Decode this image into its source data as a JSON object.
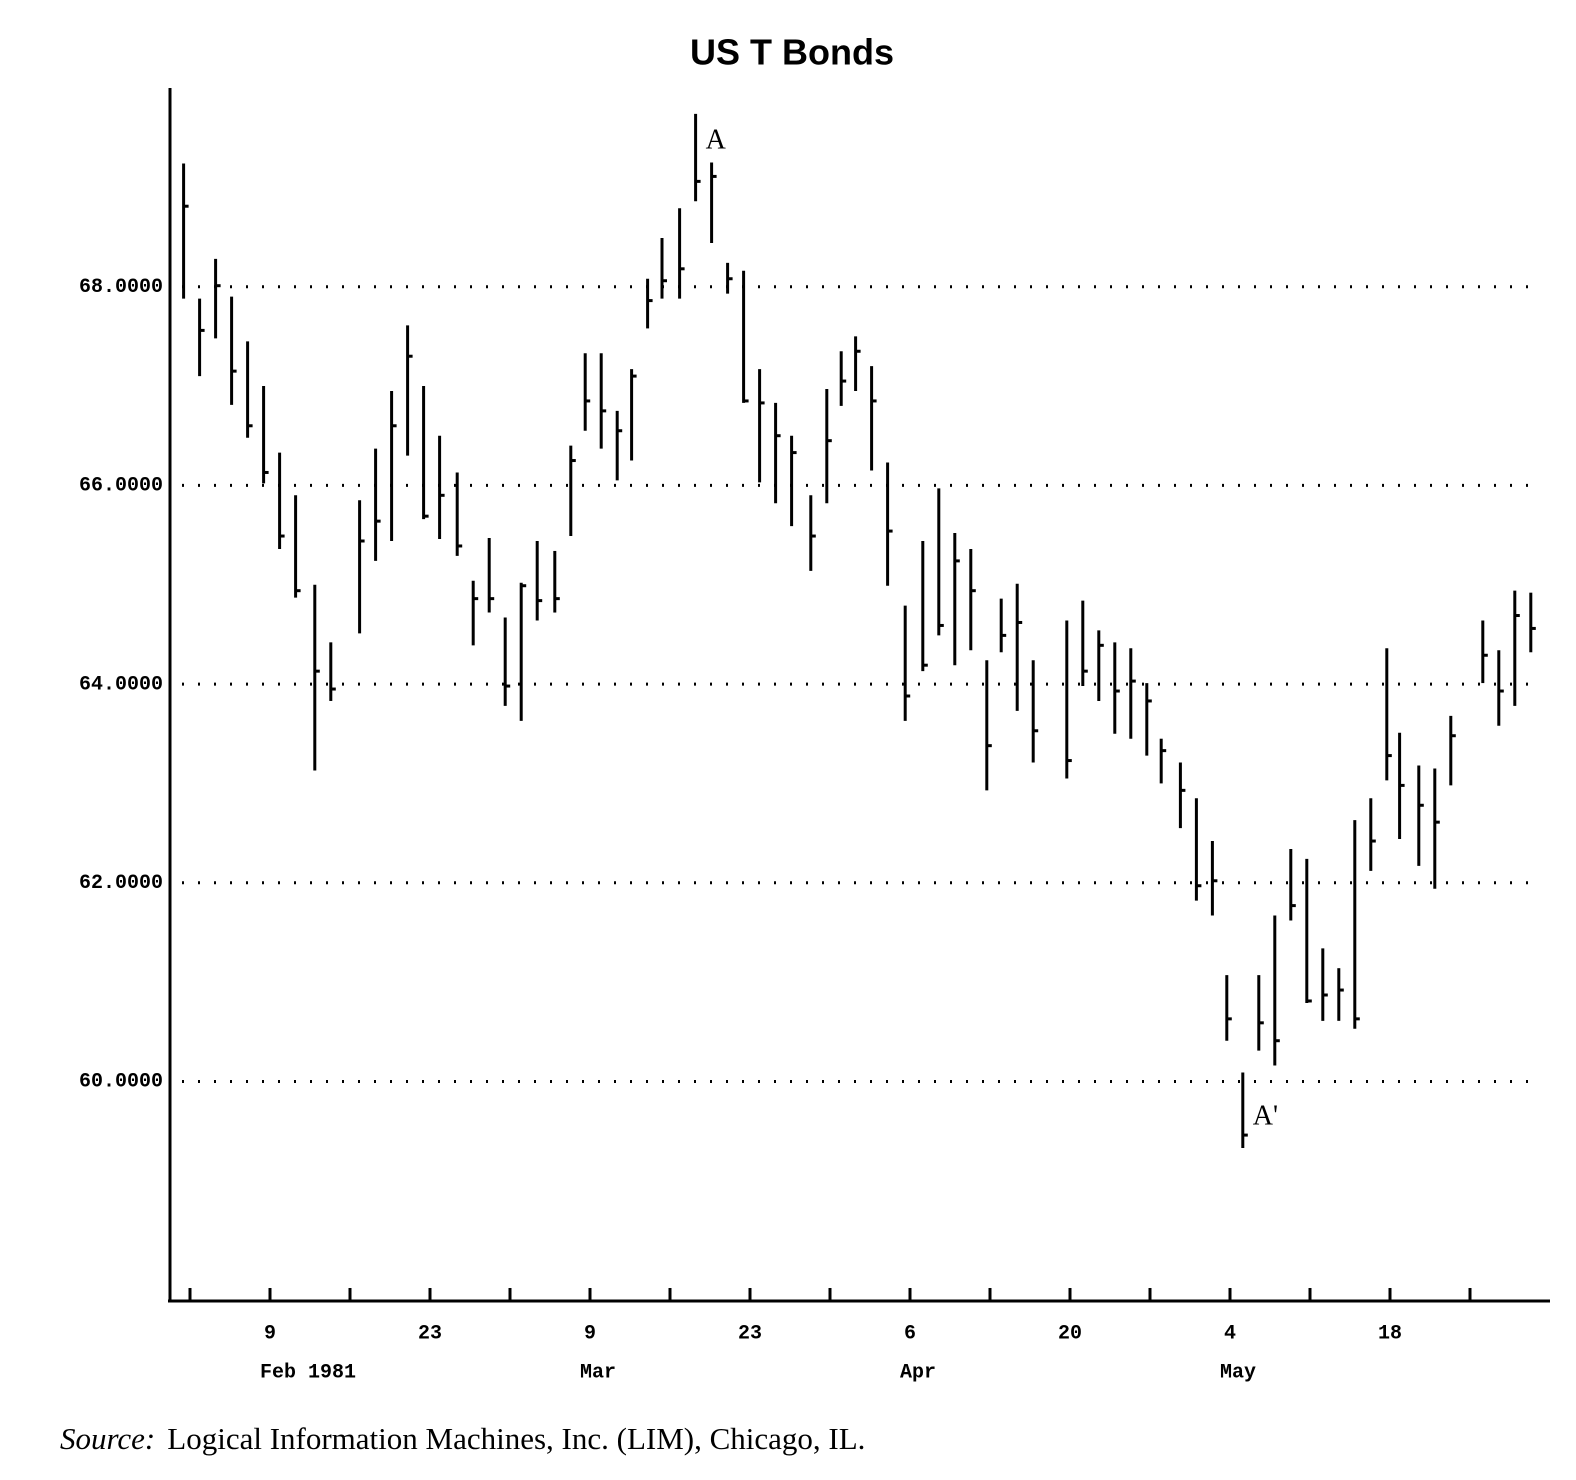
{
  "chart_data": {
    "type": "ohlc",
    "title": "US T Bonds",
    "x": [
      -0.4,
      0.6,
      1.6,
      2.6,
      3.6,
      4.6,
      5.6,
      6.6,
      7.8,
      8.8,
      10.6,
      11.6,
      12.6,
      13.6,
      14.6,
      15.6,
      16.7,
      17.7,
      18.7,
      19.7,
      20.7,
      21.7,
      22.8,
      23.8,
      24.7,
      25.7,
      26.7,
      27.6,
      28.6,
      29.5,
      30.6,
      31.6,
      32.6,
      33.6,
      34.6,
      35.6,
      36.6,
      37.6,
      38.8,
      39.8,
      40.7,
      41.6,
      42.6,
      43.6,
      44.7,
      45.8,
      46.8,
      47.8,
      48.8,
      49.8,
      50.7,
      51.7,
      52.7,
      54.8,
      55.8,
      56.8,
      57.8,
      58.8,
      59.8,
      60.7,
      61.9,
      62.9,
      63.9,
      64.8,
      65.8,
      66.8,
      67.8,
      68.8,
      69.8,
      70.8,
      71.8,
      72.8,
      73.8,
      74.8,
      75.6,
      76.8,
      77.8,
      78.8,
      80.8,
      81.8,
      82.8,
      83.8
    ],
    "series": [
      {
        "color": "#000000",
        "high": [
          69.24,
          67.88,
          68.28,
          67.9,
          67.45,
          67.0,
          66.33,
          65.9,
          65.0,
          64.42,
          65.85,
          66.37,
          66.95,
          67.61,
          67.0,
          66.5,
          66.13,
          65.04,
          65.47,
          64.67,
          65.02,
          65.44,
          65.34,
          66.4,
          67.33,
          67.33,
          66.75,
          67.17,
          68.08,
          68.49,
          68.79,
          69.74,
          69.25,
          68.24,
          68.16,
          67.17,
          66.83,
          66.5,
          65.9,
          66.97,
          67.35,
          67.5,
          67.2,
          66.23,
          64.79,
          65.44,
          65.97,
          65.52,
          65.36,
          64.24,
          64.86,
          65.01,
          64.24,
          64.64,
          64.84,
          64.54,
          64.42,
          64.36,
          64.01,
          63.45,
          63.21,
          62.85,
          62.42,
          61.07,
          60.09,
          61.07,
          61.67,
          62.34,
          62.24,
          61.34,
          61.14,
          62.63,
          62.85,
          64.36,
          63.51,
          63.18,
          63.15,
          63.68,
          64.64,
          64.34,
          64.94,
          64.92
        ],
        "low": [
          67.88,
          67.1,
          67.48,
          66.81,
          66.48,
          66.02,
          65.36,
          64.87,
          63.13,
          63.83,
          64.51,
          65.24,
          65.44,
          66.3,
          65.66,
          65.46,
          65.29,
          64.39,
          64.72,
          63.78,
          63.63,
          64.64,
          64.72,
          65.49,
          66.55,
          66.37,
          66.05,
          66.25,
          67.58,
          67.88,
          67.88,
          68.86,
          68.44,
          67.93,
          66.83,
          66.03,
          65.82,
          65.59,
          65.14,
          65.82,
          66.8,
          66.95,
          66.15,
          64.99,
          63.63,
          64.13,
          64.49,
          64.19,
          64.34,
          62.93,
          64.32,
          63.73,
          63.21,
          63.05,
          63.98,
          63.83,
          63.5,
          63.45,
          63.28,
          63.0,
          62.55,
          61.82,
          61.67,
          60.41,
          59.33,
          60.31,
          60.16,
          61.62,
          60.79,
          60.61,
          60.61,
          60.53,
          62.12,
          63.03,
          62.44,
          62.17,
          61.94,
          62.98,
          64.01,
          63.58,
          63.78,
          64.32
        ],
        "close": [
          68.81,
          67.56,
          68.01,
          67.15,
          66.6,
          66.13,
          65.49,
          64.94,
          64.13,
          63.95,
          65.44,
          65.64,
          66.6,
          67.3,
          65.69,
          65.9,
          65.39,
          64.86,
          64.86,
          63.98,
          64.99,
          64.84,
          64.86,
          66.25,
          66.85,
          66.75,
          66.55,
          67.1,
          67.86,
          68.06,
          68.18,
          69.06,
          69.11,
          68.08,
          66.85,
          66.83,
          66.5,
          66.33,
          65.49,
          66.45,
          67.05,
          67.35,
          66.85,
          65.54,
          63.88,
          64.19,
          64.59,
          65.24,
          64.94,
          63.38,
          64.49,
          64.62,
          63.53,
          63.23,
          64.13,
          64.39,
          63.93,
          64.03,
          63.83,
          63.33,
          62.93,
          61.97,
          62.02,
          60.63,
          59.46,
          60.59,
          60.41,
          61.77,
          60.81,
          60.87,
          60.92,
          60.63,
          62.42,
          63.28,
          62.98,
          62.78,
          62.61,
          63.48,
          64.29,
          63.93,
          64.69,
          64.56
        ]
      }
    ],
    "xlim": [
      -1.25,
      85
    ],
    "xticks": [
      {
        "value": 0,
        "label": null
      },
      {
        "value": 5,
        "label": "9"
      },
      {
        "value": 10,
        "label": null
      },
      {
        "value": 15,
        "label": "23"
      },
      {
        "value": 20,
        "label": null
      },
      {
        "value": 25,
        "label": "9"
      },
      {
        "value": 30,
        "label": null
      },
      {
        "value": 35,
        "label": "23"
      },
      {
        "value": 40,
        "label": null
      },
      {
        "value": 45,
        "label": "6"
      },
      {
        "value": 50,
        "label": null
      },
      {
        "value": 55,
        "label": "20"
      },
      {
        "value": 60,
        "label": null
      },
      {
        "value": 65,
        "label": "4"
      },
      {
        "value": 70,
        "label": null
      },
      {
        "value": 75,
        "label": "18"
      },
      {
        "value": 80,
        "label": null
      }
    ],
    "month_labels": [
      {
        "value": 5,
        "label": "Feb 1981"
      },
      {
        "value": 25,
        "label": "Mar"
      },
      {
        "value": 45,
        "label": "Apr"
      },
      {
        "value": 65,
        "label": "May"
      }
    ],
    "ylim": [
      57.8,
      70
    ],
    "yticks": [
      {
        "value": 60,
        "label": "60.0000"
      },
      {
        "value": 62,
        "label": "62.0000"
      },
      {
        "value": 64,
        "label": "64.0000"
      },
      {
        "value": 66,
        "label": "66.0000"
      },
      {
        "value": 68,
        "label": "68.0000"
      }
    ],
    "grid": true,
    "annotations": [
      "A",
      "A'"
    ],
    "source_label": "Source:",
    "source": "Logical Information Machines, Inc. (LIM), Chicago, IL."
  }
}
